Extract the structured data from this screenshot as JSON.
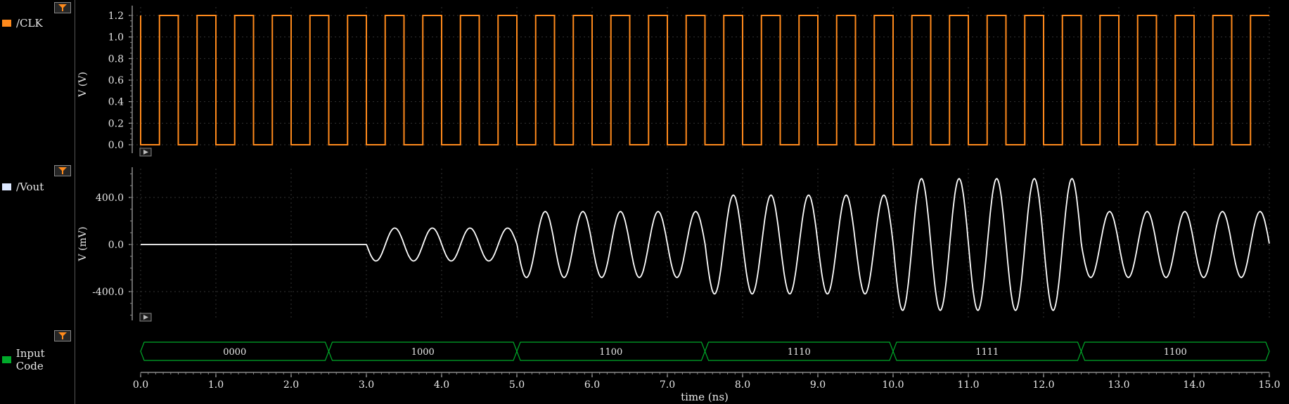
{
  "signals": [
    {
      "name": "/CLK",
      "color": "#ff8a1c",
      "ylabel": "V (V)",
      "yticks": [
        "1.2",
        "1.0",
        "0.8",
        "0.6",
        "0.4",
        "0.2",
        "0.0"
      ]
    },
    {
      "name": "/Vout",
      "color": "#dde8ff",
      "ylabel": "V (mV)",
      "yticks": [
        "400.0",
        "0.0",
        "-400.0"
      ]
    },
    {
      "name": "Input Code",
      "color": "#00aa2a"
    }
  ],
  "xaxis": {
    "label": "time (ns)",
    "ticks": [
      "0.0",
      "1.0",
      "2.0",
      "3.0",
      "4.0",
      "5.0",
      "6.0",
      "7.0",
      "8.0",
      "9.0",
      "10.0",
      "11.0",
      "12.0",
      "13.0",
      "14.0",
      "15.0"
    ],
    "range": [
      0,
      15
    ]
  },
  "chart_data": [
    {
      "type": "line",
      "ylabel": "V (V)",
      "ylim": [
        0,
        1.2
      ],
      "series": [
        {
          "name": "/CLK",
          "description_values": {
            "period_ns": 0.5,
            "high": 1.2,
            "low": 0.0,
            "start_high_ns": 0.0
          }
        }
      ]
    },
    {
      "type": "line",
      "ylabel": "V (mV)",
      "ylim": [
        -500,
        500
      ],
      "series": [
        {
          "name": "/Vout",
          "x": [
            0,
            2.8,
            3.0,
            4.9,
            5.0,
            7.4,
            7.5,
            9.9,
            10.0,
            12.4,
            12.5,
            15.0
          ],
          "amplitude_mV": [
            0,
            0,
            140,
            140,
            280,
            280,
            420,
            420,
            560,
            560,
            280,
            280
          ]
        }
      ]
    },
    {
      "type": "table",
      "columns": [
        "0000",
        "1000",
        "1100",
        "1110",
        "1111",
        "1100"
      ],
      "x_start": [
        0,
        2.5,
        5.0,
        7.5,
        10.0,
        12.5
      ],
      "x_end": [
        2.5,
        5.0,
        7.5,
        10.0,
        12.5,
        15.0
      ]
    }
  ]
}
